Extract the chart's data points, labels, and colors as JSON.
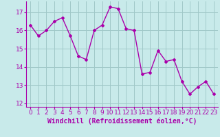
{
  "x": [
    0,
    1,
    2,
    3,
    4,
    5,
    6,
    7,
    8,
    9,
    10,
    11,
    12,
    13,
    14,
    15,
    16,
    17,
    18,
    19,
    20,
    21,
    22,
    23
  ],
  "y": [
    16.3,
    15.7,
    16.0,
    16.5,
    16.7,
    15.7,
    14.6,
    14.4,
    16.0,
    16.3,
    17.3,
    17.2,
    16.1,
    16.0,
    13.6,
    13.7,
    14.9,
    14.3,
    14.4,
    13.2,
    12.5,
    12.9,
    13.2,
    12.5
  ],
  "line_color": "#aa00aa",
  "marker": "D",
  "markersize": 2,
  "linewidth": 1,
  "background_color": "#c8eaea",
  "grid_color": "#a0c8c8",
  "xlabel": "Windchill (Refroidissement éolien,°C)",
  "xlabel_fontsize": 7,
  "tick_fontsize": 6.5,
  "ylim": [
    11.8,
    17.6
  ],
  "xlim": [
    -0.5,
    23.5
  ],
  "yticks": [
    12,
    13,
    14,
    15,
    16,
    17
  ],
  "xticks": [
    0,
    1,
    2,
    3,
    4,
    5,
    6,
    7,
    8,
    9,
    10,
    11,
    12,
    13,
    14,
    15,
    16,
    17,
    18,
    19,
    20,
    21,
    22,
    23
  ]
}
